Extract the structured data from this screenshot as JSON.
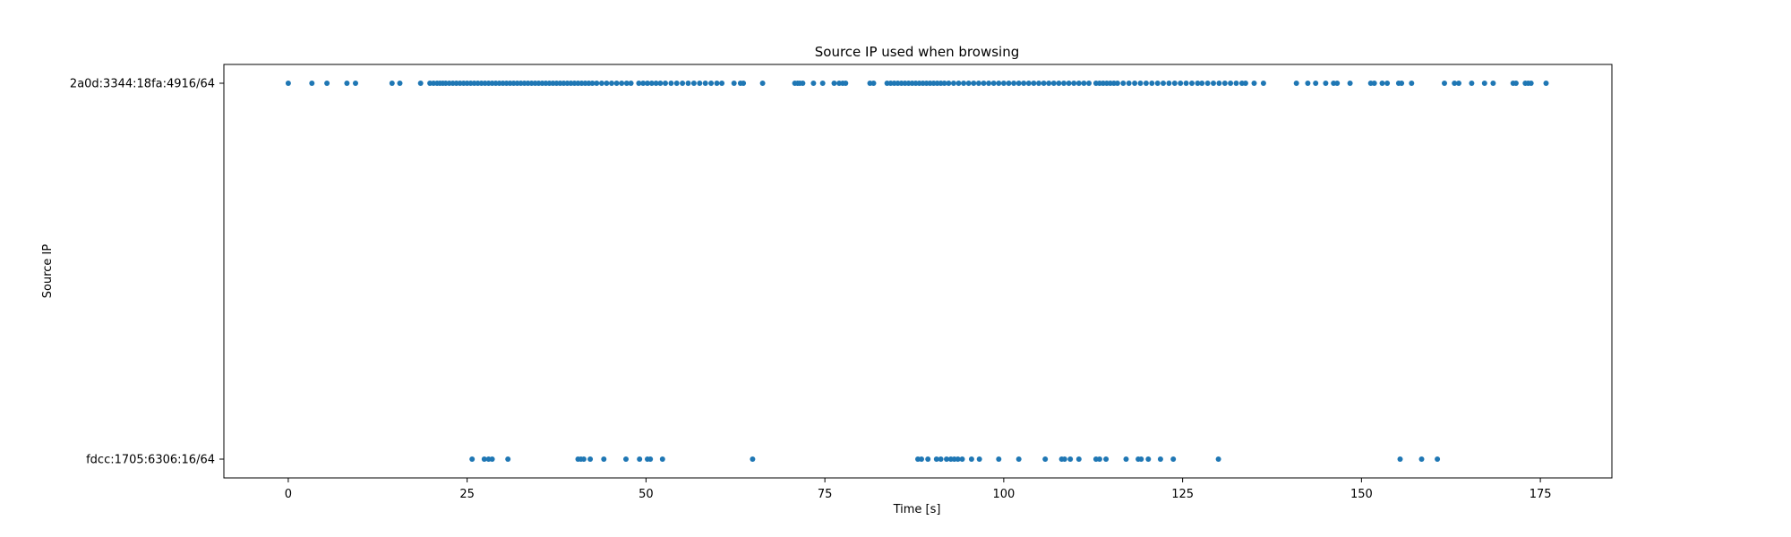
{
  "chart_data": {
    "type": "scatter",
    "title": "Source IP used when browsing",
    "xlabel": "Time [s]",
    "ylabel": "Source IP",
    "xlim": [
      -9,
      185
    ],
    "categories": [
      "fdcc:1705:6306:16/64",
      "2a0d:3344:18fa:4916/64"
    ],
    "xticks": [
      0,
      25,
      50,
      75,
      100,
      125,
      150,
      175
    ],
    "grid": false,
    "legend": "none",
    "marker_color": "#1f77b4",
    "series": [
      {
        "category": "2a0d:3344:18fa:4916/64",
        "x": [
          0.0,
          3.3,
          5.4,
          8.2,
          9.4,
          14.5,
          15.6,
          18.5,
          19.8,
          20.3,
          20.8,
          21.2,
          21.6,
          22.0,
          22.5,
          23.0,
          23.5,
          24.0,
          24.5,
          25.0,
          25.5,
          26.0,
          26.5,
          27.0,
          27.5,
          28.0,
          28.5,
          29.0,
          29.5,
          30.0,
          30.5,
          31.0,
          31.5,
          32.0,
          32.5,
          33.0,
          33.5,
          34.0,
          34.5,
          35.0,
          35.5,
          36.0,
          36.5,
          37.0,
          37.5,
          38.0,
          38.5,
          39.0,
          39.5,
          40.0,
          40.5,
          41.0,
          41.5,
          42.0,
          42.5,
          43.1,
          43.8,
          44.5,
          45.2,
          45.9,
          46.6,
          47.3,
          47.9,
          49.0,
          49.6,
          50.2,
          50.8,
          51.4,
          52.0,
          52.7,
          53.5,
          54.3,
          55.1,
          55.9,
          56.7,
          57.5,
          58.3,
          59.1,
          59.9,
          60.6,
          62.3,
          63.2,
          63.6,
          66.3,
          70.8,
          71.2,
          71.5,
          71.9,
          73.4,
          74.7,
          76.3,
          77.0,
          77.5,
          77.9,
          81.3,
          81.8,
          83.7,
          84.2,
          84.7,
          85.2,
          85.7,
          86.2,
          86.7,
          87.2,
          87.7,
          88.2,
          88.7,
          89.2,
          89.7,
          90.2,
          90.7,
          91.2,
          91.7,
          92.3,
          93.0,
          93.7,
          94.4,
          95.1,
          95.8,
          96.5,
          97.2,
          97.9,
          98.6,
          99.3,
          100.0,
          100.7,
          101.4,
          102.1,
          102.8,
          103.5,
          104.2,
          104.9,
          105.6,
          106.3,
          107.0,
          107.7,
          108.4,
          109.1,
          109.8,
          110.5,
          111.2,
          111.9,
          112.9,
          113.4,
          113.9,
          114.4,
          114.9,
          115.4,
          115.9,
          116.7,
          117.5,
          118.3,
          119.1,
          119.9,
          120.7,
          121.5,
          122.3,
          123.1,
          123.9,
          124.7,
          125.5,
          126.3,
          127.1,
          127.7,
          128.5,
          129.3,
          130.1,
          130.9,
          131.7,
          132.5,
          133.3,
          133.8,
          135.0,
          136.3,
          140.9,
          142.5,
          143.6,
          145.0,
          146.1,
          146.6,
          148.4,
          151.3,
          151.8,
          152.9,
          153.6,
          155.2,
          155.6,
          157.0,
          161.6,
          163.0,
          163.6,
          165.4,
          167.2,
          168.4,
          171.2,
          171.6,
          172.9,
          173.3,
          173.7,
          175.8
        ]
      },
      {
        "category": "fdcc:1705:6306:16/64",
        "x": [
          25.7,
          27.4,
          28.0,
          28.5,
          30.7,
          40.5,
          40.9,
          41.3,
          42.2,
          44.1,
          47.2,
          49.1,
          50.2,
          50.6,
          52.3,
          64.9,
          88.0,
          88.5,
          89.4,
          90.6,
          91.2,
          92.0,
          92.6,
          93.1,
          93.6,
          94.2,
          95.5,
          96.6,
          99.3,
          102.1,
          105.8,
          108.1,
          108.5,
          109.3,
          110.5,
          112.9,
          113.4,
          114.3,
          117.1,
          118.8,
          119.2,
          120.2,
          121.9,
          123.7,
          130.0,
          155.4,
          158.4,
          160.6
        ]
      }
    ]
  }
}
